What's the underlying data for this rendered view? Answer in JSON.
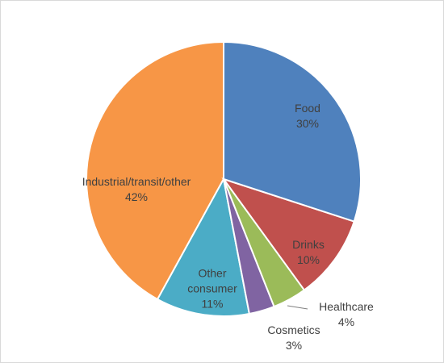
{
  "chart_data": {
    "type": "pie",
    "categories": [
      "Food",
      "Drinks",
      "Healthcare",
      "Cosmetics",
      "Other consumer",
      "Industrial/transit/other"
    ],
    "values": [
      30,
      10,
      4,
      3,
      11,
      42
    ],
    "value_labels": [
      "30%",
      "10%",
      "4%",
      "3%",
      "11%",
      "42%"
    ],
    "colors": [
      "#4f81bd",
      "#c0504d",
      "#9bbb59",
      "#8064a2",
      "#4bacc6",
      "#f79646"
    ]
  }
}
